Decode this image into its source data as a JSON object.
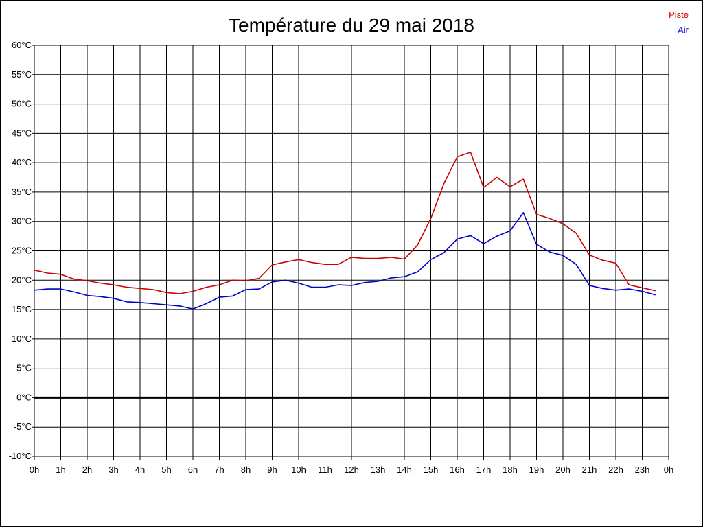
{
  "chart_data": {
    "type": "line",
    "title": "Température du 29 mai 2018",
    "xlabel": "",
    "ylabel": "",
    "ylim": [
      -10,
      60
    ],
    "xlim": [
      0,
      24
    ],
    "grid": true,
    "legend_position": "top-right",
    "y_ticks": [
      "-10°C",
      "-5°C",
      "0°C",
      "5°C",
      "10°C",
      "15°C",
      "20°C",
      "25°C",
      "30°C",
      "35°C",
      "40°C",
      "45°C",
      "50°C",
      "55°C",
      "60°C"
    ],
    "x_ticks": [
      "0h",
      "1h",
      "2h",
      "3h",
      "4h",
      "5h",
      "6h",
      "7h",
      "8h",
      "9h",
      "10h",
      "11h",
      "12h",
      "13h",
      "14h",
      "15h",
      "16h",
      "17h",
      "18h",
      "19h",
      "20h",
      "21h",
      "22h",
      "23h",
      "0h"
    ],
    "x": [
      0,
      0.5,
      1,
      1.5,
      2,
      2.5,
      3,
      3.5,
      4,
      4.5,
      5,
      5.5,
      6,
      6.5,
      7,
      7.5,
      8,
      8.5,
      9,
      9.5,
      10,
      10.5,
      11,
      11.5,
      12,
      12.5,
      13,
      13.5,
      14,
      14.5,
      15,
      15.5,
      16,
      16.5,
      17,
      17.5,
      18,
      18.5,
      19,
      19.5,
      20,
      20.5,
      21,
      21.5,
      22,
      22.5,
      23,
      23.5
    ],
    "series": [
      {
        "name": "Piste",
        "color": "#cc0000",
        "values": [
          21.7,
          21.2,
          21.0,
          20.2,
          19.9,
          19.5,
          19.2,
          18.8,
          18.6,
          18.4,
          17.9,
          17.7,
          18.1,
          18.8,
          19.2,
          20.0,
          19.9,
          20.3,
          22.6,
          23.1,
          23.5,
          23.0,
          22.7,
          22.7,
          23.9,
          23.7,
          23.7,
          23.9,
          23.6,
          26.0,
          30.5,
          36.5,
          41.0,
          41.8,
          35.8,
          37.5,
          35.9,
          37.2,
          31.2,
          30.5,
          29.6,
          28.0,
          24.3,
          23.4,
          22.9,
          19.2,
          18.7,
          18.2
        ]
      },
      {
        "name": "Air",
        "color": "#0000cc",
        "values": [
          18.3,
          18.5,
          18.5,
          18.0,
          17.4,
          17.2,
          16.9,
          16.3,
          16.2,
          16.0,
          15.8,
          15.6,
          15.1,
          16.0,
          17.1,
          17.3,
          18.4,
          18.5,
          19.7,
          20.0,
          19.5,
          18.8,
          18.8,
          19.2,
          19.1,
          19.6,
          19.8,
          20.4,
          20.6,
          21.4,
          23.5,
          24.7,
          27.0,
          27.6,
          26.2,
          27.5,
          28.4,
          31.5,
          26.1,
          24.8,
          24.2,
          22.7,
          19.1,
          18.6,
          18.3,
          18.5,
          18.1,
          17.5
        ]
      }
    ]
  }
}
